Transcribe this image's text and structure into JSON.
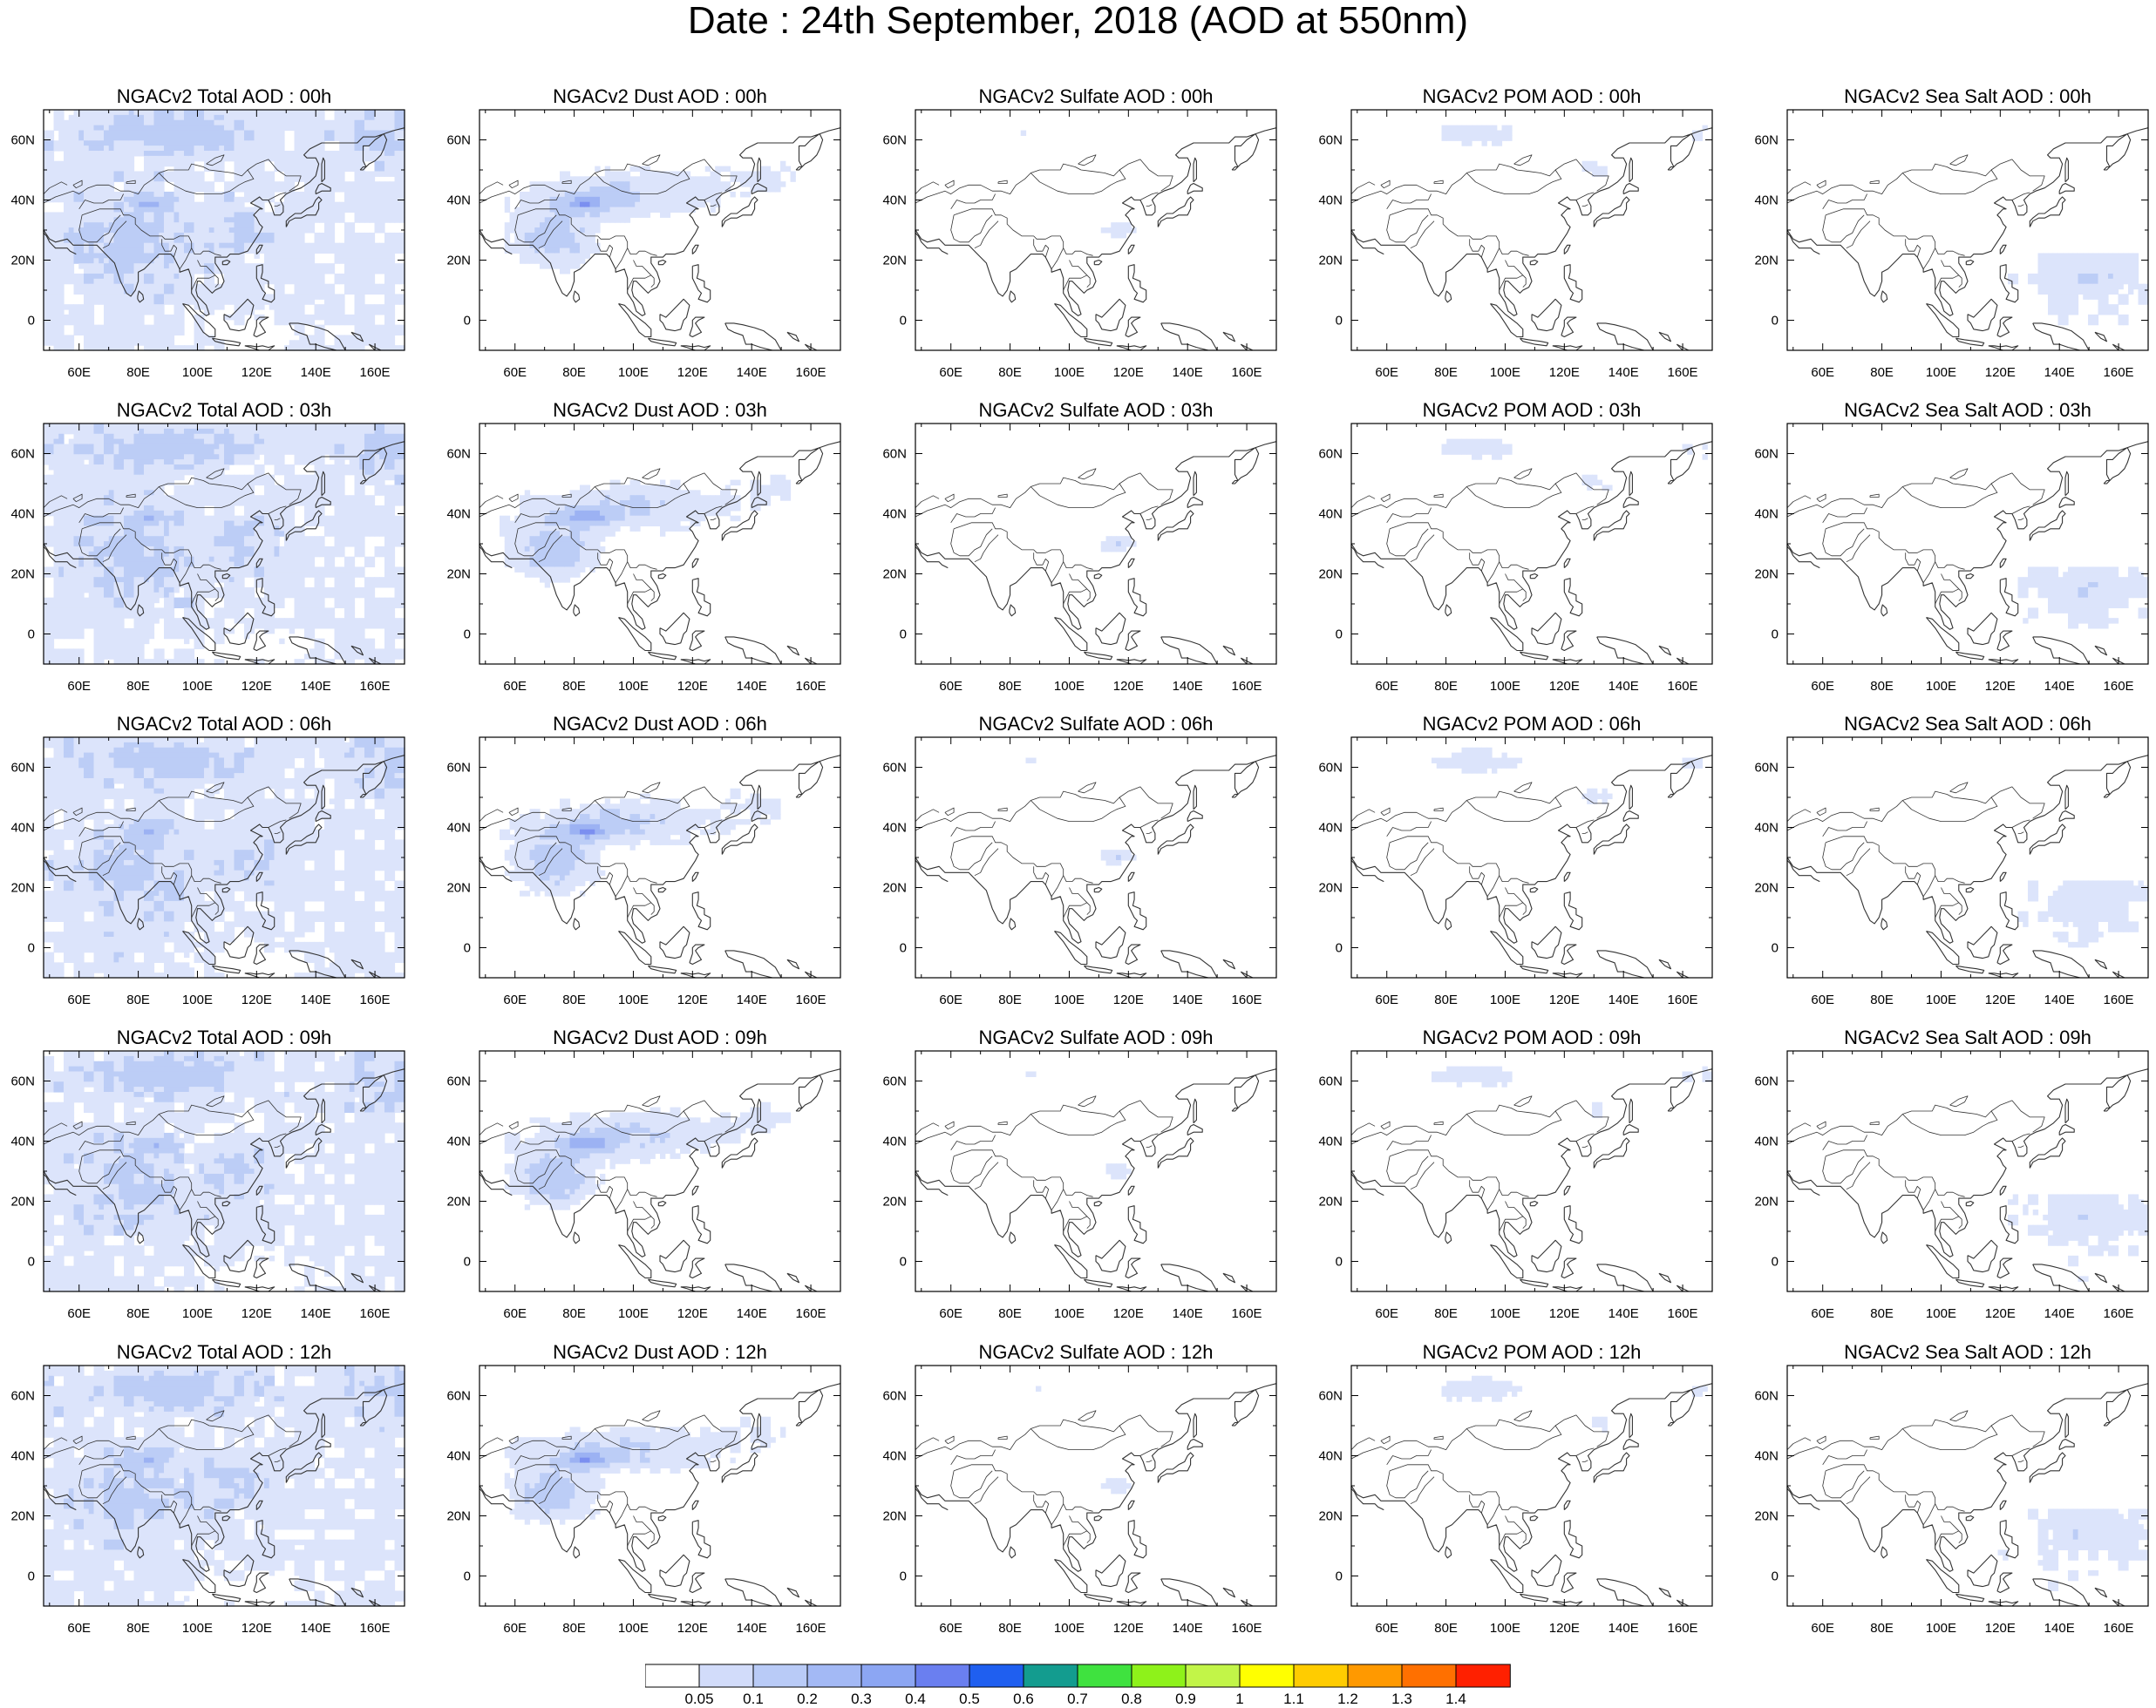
{
  "title": "Date : 24th September, 2018 (AOD at 550nm)",
  "axes": {
    "lon_ticks": [
      "60E",
      "80E",
      "100E",
      "120E",
      "140E",
      "160E"
    ],
    "lat_ticks": [
      "60N",
      "40N",
      "20N",
      "0"
    ],
    "lon_range": [
      48,
      170
    ],
    "lat_range": [
      -10,
      70
    ]
  },
  "panels": [
    [
      "NGACv2 Total AOD : 00h",
      "NGACv2 Dust AOD : 00h",
      "NGACv2 Sulfate AOD : 00h",
      "NGACv2 POM AOD : 00h",
      "NGACv2 Sea Salt AOD : 00h"
    ],
    [
      "NGACv2 Total AOD : 03h",
      "NGACv2 Dust AOD : 03h",
      "NGACv2 Sulfate AOD : 03h",
      "NGACv2 POM AOD : 03h",
      "NGACv2 Sea Salt AOD : 03h"
    ],
    [
      "NGACv2 Total AOD : 06h",
      "NGACv2 Dust AOD : 06h",
      "NGACv2 Sulfate AOD : 06h",
      "NGACv2 POM AOD : 06h",
      "NGACv2 Sea Salt AOD : 06h"
    ],
    [
      "NGACv2 Total AOD : 09h",
      "NGACv2 Dust AOD : 09h",
      "NGACv2 Sulfate AOD : 09h",
      "NGACv2 POM AOD : 09h",
      "NGACv2 Sea Salt  AOD : 09h"
    ],
    [
      "NGACv2 Total AOD  : 12h",
      "NGACv2 Dust AOD : 12h",
      "NGACv2 Sulfate AOD : 12h",
      "NGACv2 POM  AOD : 12h",
      "NGACv2 Sea Salt  AOD : 12h"
    ]
  ],
  "colorbar": {
    "labels": [
      "0.05",
      "0.1",
      "0.2",
      "0.3",
      "0.4",
      "0.5",
      "0.6",
      "0.7",
      "0.8",
      "0.9",
      "1",
      "1.1",
      "1.2",
      "1.3",
      "1.4"
    ],
    "colors": [
      "#ffffff",
      "#d2dcfa",
      "#b9cbf7",
      "#a3b9f5",
      "#8ca6f3",
      "#6a7ff0",
      "#1f5ff0",
      "#139c8f",
      "#3fe23f",
      "#8ef21a",
      "#c2f548",
      "#ffff00",
      "#ffcc00",
      "#ff9900",
      "#ff7000",
      "#ff2000"
    ]
  },
  "palette": {
    "light": "#dce4fb",
    "mid": "#bccdf6",
    "dark": "#9cb2f3",
    "darker": "#7b8ff0",
    "teal": "#1aa09a",
    "coast": "#333333"
  }
}
